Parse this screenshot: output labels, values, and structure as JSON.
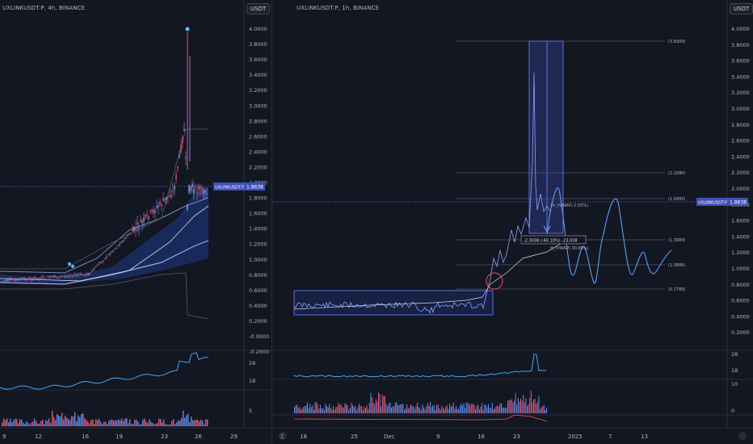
{
  "left_chart": {
    "symbol_line": "UXLINKUSDT.P, 4h, BINANCE",
    "currency": "USDT",
    "price_axis": [
      "4.0000",
      "3.8000",
      "3.6000",
      "3.4000",
      "3.2000",
      "3.0000",
      "2.8000",
      "2.6000",
      "2.4000",
      "2.2000",
      "2.0000",
      "1.8000",
      "1.6000",
      "1.4000",
      "1.2000",
      "1.0000",
      "0.8000",
      "0.6000",
      "0.4000",
      "0.2000",
      "-0.0000",
      "-0.2000"
    ],
    "price_tag": {
      "symbol": "UXLINKUSDT.P",
      "value": "1.8638"
    },
    "indicator_axis": [
      "28",
      "18"
    ],
    "volume_axis": [
      "5"
    ],
    "time_axis": [
      "9",
      "12",
      "16",
      "19",
      "23",
      "26",
      "29"
    ]
  },
  "right_chart": {
    "symbol_line": "UXLINKUSDT.P, 1h, BINANCE",
    "currency": "USDT",
    "price_axis": [
      "4.0000",
      "3.8000",
      "3.6000",
      "3.4000",
      "3.2000",
      "3.0000",
      "2.8000",
      "2.6000",
      "2.4000",
      "2.2000",
      "2.0000",
      "1.8000",
      "1.6000",
      "1.4000",
      "1.2000",
      "1.0000",
      "0.8000",
      "0.6000",
      "0.4000",
      "0.2000"
    ],
    "price_tag": {
      "symbol": "UXLINKUSDT.P",
      "value": "1.8638"
    },
    "fib_levels": [
      "(3.8309)",
      "(2.2090)",
      "(1.6995)",
      "(1.3984)",
      "(1.0886)",
      "(0.7789)"
    ],
    "annotations": {
      "vwap_1": "1h_rVWAP(-2.55%)",
      "vwap_2": "H_rVWAP(-30.88%)",
      "measure": "-2.3038 (-60.10%) -23,038"
    },
    "indicator_axis": [
      "28",
      "18"
    ],
    "volume_axis": [
      "10",
      "0"
    ],
    "time_axis": [
      "18",
      "25",
      "Dec",
      "9",
      "16",
      "23",
      "2025",
      "7",
      "13"
    ]
  },
  "colors": {
    "background": "#131722",
    "accent": "#5b6ee1",
    "price_tag_bg": "#3f51b5",
    "candle_up": "#8aa0f0",
    "candle_down": "#e05a7a"
  }
}
